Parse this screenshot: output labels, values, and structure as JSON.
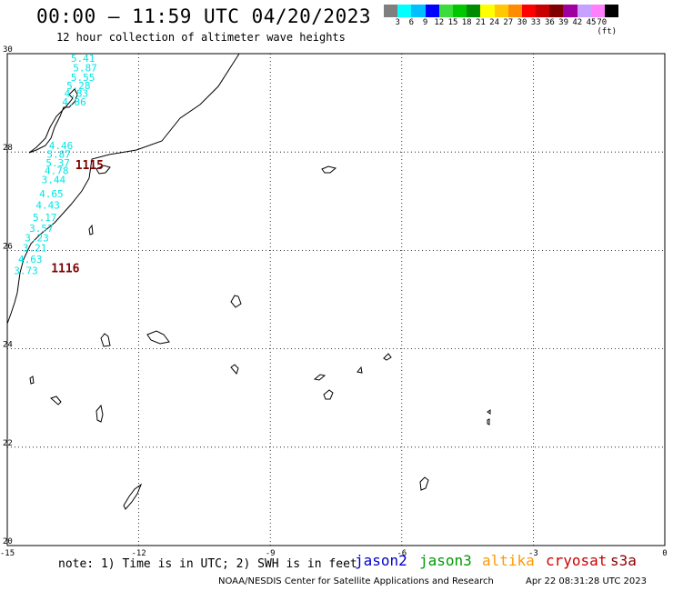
{
  "header": {
    "title": "00:00 — 11:59 UTC 04/20/2023",
    "subtitle": "12 hour collection of altimeter wave heights"
  },
  "legend": {
    "colors": [
      "#7f7f7f",
      "#00ffff",
      "#00bfff",
      "#0000ff",
      "#3cdc3c",
      "#00c800",
      "#008c00",
      "#ffff00",
      "#ffc800",
      "#ff8c00",
      "#ff0000",
      "#c80000",
      "#800000",
      "#a000a0",
      "#c8a0ff",
      "#ff80ff",
      "#000000"
    ],
    "labels": [
      "3",
      "6",
      "9",
      "12",
      "15",
      "18",
      "21",
      "24",
      "27",
      "30",
      "33",
      "36",
      "39",
      "42",
      "45",
      "70 (ft)"
    ]
  },
  "axes": {
    "x_ticks": [
      "-15",
      "-12",
      "-9",
      "-6",
      "-3",
      "0"
    ],
    "y_ticks": [
      "30",
      "28",
      "26",
      "24",
      "22",
      "20"
    ]
  },
  "map_data": {
    "lon_range": [
      -15,
      0
    ],
    "lat_range": [
      20,
      30
    ],
    "wave_heights": [
      {
        "lon": -13.55,
        "lat": 29.83,
        "value": "5.41"
      },
      {
        "lon": -13.5,
        "lat": 29.64,
        "value": "5.87"
      },
      {
        "lon": -13.55,
        "lat": 29.45,
        "value": "5.55"
      },
      {
        "lon": -13.65,
        "lat": 29.28,
        "value": "5.28"
      },
      {
        "lon": -13.7,
        "lat": 29.12,
        "value": "4.83"
      },
      {
        "lon": -13.75,
        "lat": 28.95,
        "value": "4.86"
      },
      {
        "lon": -14.05,
        "lat": 28.06,
        "value": "4.46"
      },
      {
        "lon": -14.1,
        "lat": 27.88,
        "value": "5.87"
      },
      {
        "lon": -14.12,
        "lat": 27.71,
        "value": "5.37"
      },
      {
        "lon": -14.15,
        "lat": 27.55,
        "value": "4.78"
      },
      {
        "lon": -14.22,
        "lat": 27.37,
        "value": "3.44"
      },
      {
        "lon": -14.27,
        "lat": 27.08,
        "value": "4.65"
      },
      {
        "lon": -14.35,
        "lat": 26.85,
        "value": "4.43"
      },
      {
        "lon": -14.42,
        "lat": 26.6,
        "value": "5.17"
      },
      {
        "lon": -14.5,
        "lat": 26.38,
        "value": "3.57"
      },
      {
        "lon": -14.6,
        "lat": 26.18,
        "value": "3.23"
      },
      {
        "lon": -14.65,
        "lat": 25.98,
        "value": "3.21"
      },
      {
        "lon": -14.75,
        "lat": 25.75,
        "value": "4.63"
      },
      {
        "lon": -14.85,
        "lat": 25.52,
        "value": "3.73"
      }
    ],
    "pass_ids": [
      {
        "lon": -13.45,
        "lat": 27.65,
        "value": "1115"
      },
      {
        "lon": -14.0,
        "lat": 25.55,
        "value": "1116"
      }
    ],
    "satellites": [
      {
        "name": "jason2",
        "color": "#0000cc"
      },
      {
        "name": "jason3",
        "color": "#009a00"
      },
      {
        "name": "altika",
        "color": "#ff9900"
      },
      {
        "name": "cryosat",
        "color": "#cc0000"
      },
      {
        "name": "s3a",
        "color": "#8b0000"
      }
    ],
    "wave_label_color": "#00e5e5",
    "pass_label_color": "#800000"
  },
  "footer": {
    "note": "note: 1) Time is in UTC; 2) SWH is in feet",
    "credit": "NOAA/NESDIS Center for Satellite Applications and Research",
    "timestamp": "Apr 22 08:31:28 UTC 2023"
  }
}
